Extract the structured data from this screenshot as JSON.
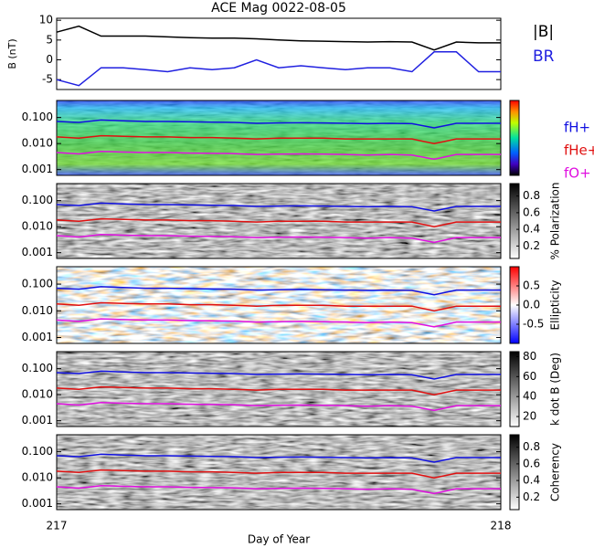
{
  "chart_data": [
    {
      "type": "line",
      "title": "ACE Mag 0022-08-05",
      "y_label": "B (nT)",
      "legend": "right",
      "x": [
        217.0,
        217.05,
        217.1,
        217.15,
        217.2,
        217.25,
        217.3,
        217.35,
        217.4,
        217.45,
        217.5,
        217.55,
        217.6,
        217.65,
        217.7,
        217.75,
        217.8,
        217.85,
        217.9,
        217.95,
        218.0
      ],
      "xlim": [
        217,
        218
      ],
      "ylim": [
        -7.5,
        10.5
      ],
      "yticks": [
        -5,
        0,
        5,
        10
      ],
      "series": [
        {
          "name": "|B|",
          "color": "#000000",
          "values": [
            7,
            8.5,
            6,
            6,
            6,
            5.8,
            5.6,
            5.5,
            5.5,
            5.3,
            5,
            4.8,
            4.7,
            4.6,
            4.5,
            4.6,
            4.5,
            2.5,
            4.5,
            4.3,
            4.3
          ]
        },
        {
          "name": "BR",
          "color": "#2020e0",
          "values": [
            -5,
            -6.5,
            -2,
            -2,
            -2.5,
            -3,
            -2,
            -2.5,
            -2,
            0,
            -2,
            -1.5,
            -2,
            -2.5,
            -2,
            -2,
            -3,
            2,
            2,
            -3,
            -3
          ]
        }
      ]
    },
    {
      "type": "spectrogram",
      "colormap": "rainbow",
      "log_y": true,
      "legend": "right",
      "x": [
        217.0,
        217.05,
        217.1,
        217.15,
        217.2,
        217.25,
        217.3,
        217.35,
        217.4,
        217.45,
        217.5,
        217.55,
        217.6,
        217.65,
        217.7,
        217.75,
        217.8,
        217.85,
        217.9,
        217.95,
        218.0
      ],
      "xlim": [
        217,
        218
      ],
      "ylim": [
        0.0006,
        0.45
      ],
      "yticks": [
        {
          "value": 0.001,
          "label": "0.001"
        },
        {
          "value": 0.01,
          "label": "0.010"
        },
        {
          "value": 0.1,
          "label": "0.100"
        }
      ],
      "series": [
        {
          "name": "fH+",
          "color": "#1010e0",
          "values": [
            0.07,
            0.065,
            0.08,
            0.075,
            0.07,
            0.07,
            0.068,
            0.066,
            0.065,
            0.06,
            0.062,
            0.063,
            0.062,
            0.06,
            0.058,
            0.06,
            0.058,
            0.04,
            0.06,
            0.06,
            0.06
          ]
        },
        {
          "name": "fHe+",
          "color": "#e01010",
          "values": [
            0.018,
            0.016,
            0.02,
            0.019,
            0.018,
            0.018,
            0.017,
            0.017,
            0.016,
            0.015,
            0.016,
            0.016,
            0.016,
            0.015,
            0.015,
            0.015,
            0.015,
            0.01,
            0.015,
            0.015,
            0.015
          ]
        },
        {
          "name": "fO+",
          "color": "#e010e0",
          "values": [
            0.0045,
            0.004,
            0.005,
            0.0047,
            0.0045,
            0.0045,
            0.0043,
            0.0042,
            0.0041,
            0.0038,
            0.0039,
            0.004,
            0.0039,
            0.0038,
            0.0036,
            0.0038,
            0.0036,
            0.0025,
            0.0038,
            0.0038,
            0.0038
          ]
        }
      ]
    },
    {
      "type": "spectrogram",
      "colormap": "gray",
      "log_y": true,
      "colorbar_label": "% Polarization",
      "colorbar_lim": [
        0.05,
        0.95
      ],
      "colorbar_ticks": [
        0.2,
        0.4,
        0.6,
        0.8
      ],
      "x": [
        217.0,
        217.05,
        217.1,
        217.15,
        217.2,
        217.25,
        217.3,
        217.35,
        217.4,
        217.45,
        217.5,
        217.55,
        217.6,
        217.65,
        217.7,
        217.75,
        217.8,
        217.85,
        217.9,
        217.95,
        218.0
      ],
      "xlim": [
        217,
        218
      ],
      "ylim": [
        0.0006,
        0.45
      ],
      "yticks": [
        {
          "value": 0.001,
          "label": "0.001"
        },
        {
          "value": 0.01,
          "label": "0.010"
        },
        {
          "value": 0.1,
          "label": "0.100"
        }
      ],
      "series": [
        {
          "color": "#1010e0",
          "values": [
            0.07,
            0.065,
            0.08,
            0.075,
            0.07,
            0.07,
            0.068,
            0.066,
            0.065,
            0.06,
            0.062,
            0.063,
            0.062,
            0.06,
            0.058,
            0.06,
            0.058,
            0.04,
            0.06,
            0.06,
            0.06
          ]
        },
        {
          "color": "#e01010",
          "values": [
            0.018,
            0.016,
            0.02,
            0.019,
            0.018,
            0.018,
            0.017,
            0.017,
            0.016,
            0.015,
            0.016,
            0.016,
            0.016,
            0.015,
            0.015,
            0.015,
            0.015,
            0.01,
            0.015,
            0.015,
            0.015
          ]
        },
        {
          "color": "#e010e0",
          "values": [
            0.0045,
            0.004,
            0.005,
            0.0047,
            0.0045,
            0.0045,
            0.0043,
            0.0042,
            0.0041,
            0.0038,
            0.0039,
            0.004,
            0.0039,
            0.0038,
            0.0036,
            0.0038,
            0.0036,
            0.0025,
            0.0038,
            0.0038,
            0.0038
          ]
        }
      ]
    },
    {
      "type": "spectrogram",
      "colormap": "bwr",
      "log_y": true,
      "colorbar_label": "Ellipticity",
      "colorbar_lim": [
        -1,
        1
      ],
      "colorbar_ticks": [
        -0.5,
        {
          "value": 0,
          "label": "0.0"
        },
        0.5
      ],
      "x": [
        217.0,
        217.05,
        217.1,
        217.15,
        217.2,
        217.25,
        217.3,
        217.35,
        217.4,
        217.45,
        217.5,
        217.55,
        217.6,
        217.65,
        217.7,
        217.75,
        217.8,
        217.85,
        217.9,
        217.95,
        218.0
      ],
      "xlim": [
        217,
        218
      ],
      "ylim": [
        0.0006,
        0.45
      ],
      "yticks": [
        {
          "value": 0.001,
          "label": "0.001"
        },
        {
          "value": 0.01,
          "label": "0.010"
        },
        {
          "value": 0.1,
          "label": "0.100"
        }
      ],
      "series": [
        {
          "color": "#1010e0",
          "values": [
            0.07,
            0.065,
            0.08,
            0.075,
            0.07,
            0.07,
            0.068,
            0.066,
            0.065,
            0.06,
            0.062,
            0.063,
            0.062,
            0.06,
            0.058,
            0.06,
            0.058,
            0.04,
            0.06,
            0.06,
            0.06
          ]
        },
        {
          "color": "#e01010",
          "values": [
            0.018,
            0.016,
            0.02,
            0.019,
            0.018,
            0.018,
            0.017,
            0.017,
            0.016,
            0.015,
            0.016,
            0.016,
            0.016,
            0.015,
            0.015,
            0.015,
            0.015,
            0.01,
            0.015,
            0.015,
            0.015
          ]
        },
        {
          "color": "#e010e0",
          "values": [
            0.0045,
            0.004,
            0.005,
            0.0047,
            0.0045,
            0.0045,
            0.0043,
            0.0042,
            0.0041,
            0.0038,
            0.0039,
            0.004,
            0.0039,
            0.0038,
            0.0036,
            0.0038,
            0.0036,
            0.0025,
            0.0038,
            0.0038,
            0.0038
          ]
        }
      ]
    },
    {
      "type": "spectrogram",
      "colormap": "gray",
      "log_y": true,
      "colorbar_label": "k dot B (Deg)",
      "colorbar_lim": [
        10,
        85
      ],
      "colorbar_ticks": [
        20,
        40,
        60,
        80
      ],
      "x": [
        217.0,
        217.05,
        217.1,
        217.15,
        217.2,
        217.25,
        217.3,
        217.35,
        217.4,
        217.45,
        217.5,
        217.55,
        217.6,
        217.65,
        217.7,
        217.75,
        217.8,
        217.85,
        217.9,
        217.95,
        218.0
      ],
      "xlim": [
        217,
        218
      ],
      "ylim": [
        0.0006,
        0.45
      ],
      "yticks": [
        {
          "value": 0.001,
          "label": "0.001"
        },
        {
          "value": 0.01,
          "label": "0.010"
        },
        {
          "value": 0.1,
          "label": "0.100"
        }
      ],
      "series": [
        {
          "color": "#1010e0",
          "values": [
            0.07,
            0.065,
            0.08,
            0.075,
            0.07,
            0.07,
            0.068,
            0.066,
            0.065,
            0.06,
            0.062,
            0.063,
            0.062,
            0.06,
            0.058,
            0.06,
            0.058,
            0.04,
            0.06,
            0.06,
            0.06
          ]
        },
        {
          "color": "#e01010",
          "values": [
            0.018,
            0.016,
            0.02,
            0.019,
            0.018,
            0.018,
            0.017,
            0.017,
            0.016,
            0.015,
            0.016,
            0.016,
            0.016,
            0.015,
            0.015,
            0.015,
            0.015,
            0.01,
            0.015,
            0.015,
            0.015
          ]
        },
        {
          "color": "#e010e0",
          "values": [
            0.0045,
            0.004,
            0.005,
            0.0047,
            0.0045,
            0.0045,
            0.0043,
            0.0042,
            0.0041,
            0.0038,
            0.0039,
            0.004,
            0.0039,
            0.0038,
            0.0036,
            0.0038,
            0.0036,
            0.0025,
            0.0038,
            0.0038,
            0.0038
          ]
        }
      ]
    },
    {
      "type": "spectrogram",
      "colormap": "gray",
      "log_y": true,
      "colorbar_label": "Coherency",
      "colorbar_lim": [
        0.05,
        0.95
      ],
      "colorbar_ticks": [
        0.2,
        0.4,
        0.6,
        0.8
      ],
      "x_label": "Day of Year",
      "xticks": [
        217,
        218
      ],
      "x": [
        217.0,
        217.05,
        217.1,
        217.15,
        217.2,
        217.25,
        217.3,
        217.35,
        217.4,
        217.45,
        217.5,
        217.55,
        217.6,
        217.65,
        217.7,
        217.75,
        217.8,
        217.85,
        217.9,
        217.95,
        218.0
      ],
      "xlim": [
        217,
        218
      ],
      "ylim": [
        0.0006,
        0.45
      ],
      "yticks": [
        {
          "value": 0.001,
          "label": "0.001"
        },
        {
          "value": 0.01,
          "label": "0.010"
        },
        {
          "value": 0.1,
          "label": "0.100"
        }
      ],
      "series": [
        {
          "color": "#1010e0",
          "values": [
            0.07,
            0.065,
            0.08,
            0.075,
            0.07,
            0.07,
            0.068,
            0.066,
            0.065,
            0.06,
            0.062,
            0.063,
            0.062,
            0.06,
            0.058,
            0.06,
            0.058,
            0.04,
            0.06,
            0.06,
            0.06
          ]
        },
        {
          "color": "#e01010",
          "values": [
            0.018,
            0.016,
            0.02,
            0.019,
            0.018,
            0.018,
            0.017,
            0.017,
            0.016,
            0.015,
            0.016,
            0.016,
            0.016,
            0.015,
            0.015,
            0.015,
            0.015,
            0.01,
            0.015,
            0.015,
            0.015
          ]
        },
        {
          "color": "#e010e0",
          "values": [
            0.0045,
            0.004,
            0.005,
            0.0047,
            0.0045,
            0.0045,
            0.0043,
            0.0042,
            0.0041,
            0.0038,
            0.0039,
            0.004,
            0.0039,
            0.0038,
            0.0036,
            0.0038,
            0.0036,
            0.0025,
            0.0038,
            0.0038,
            0.0038
          ]
        }
      ]
    }
  ]
}
